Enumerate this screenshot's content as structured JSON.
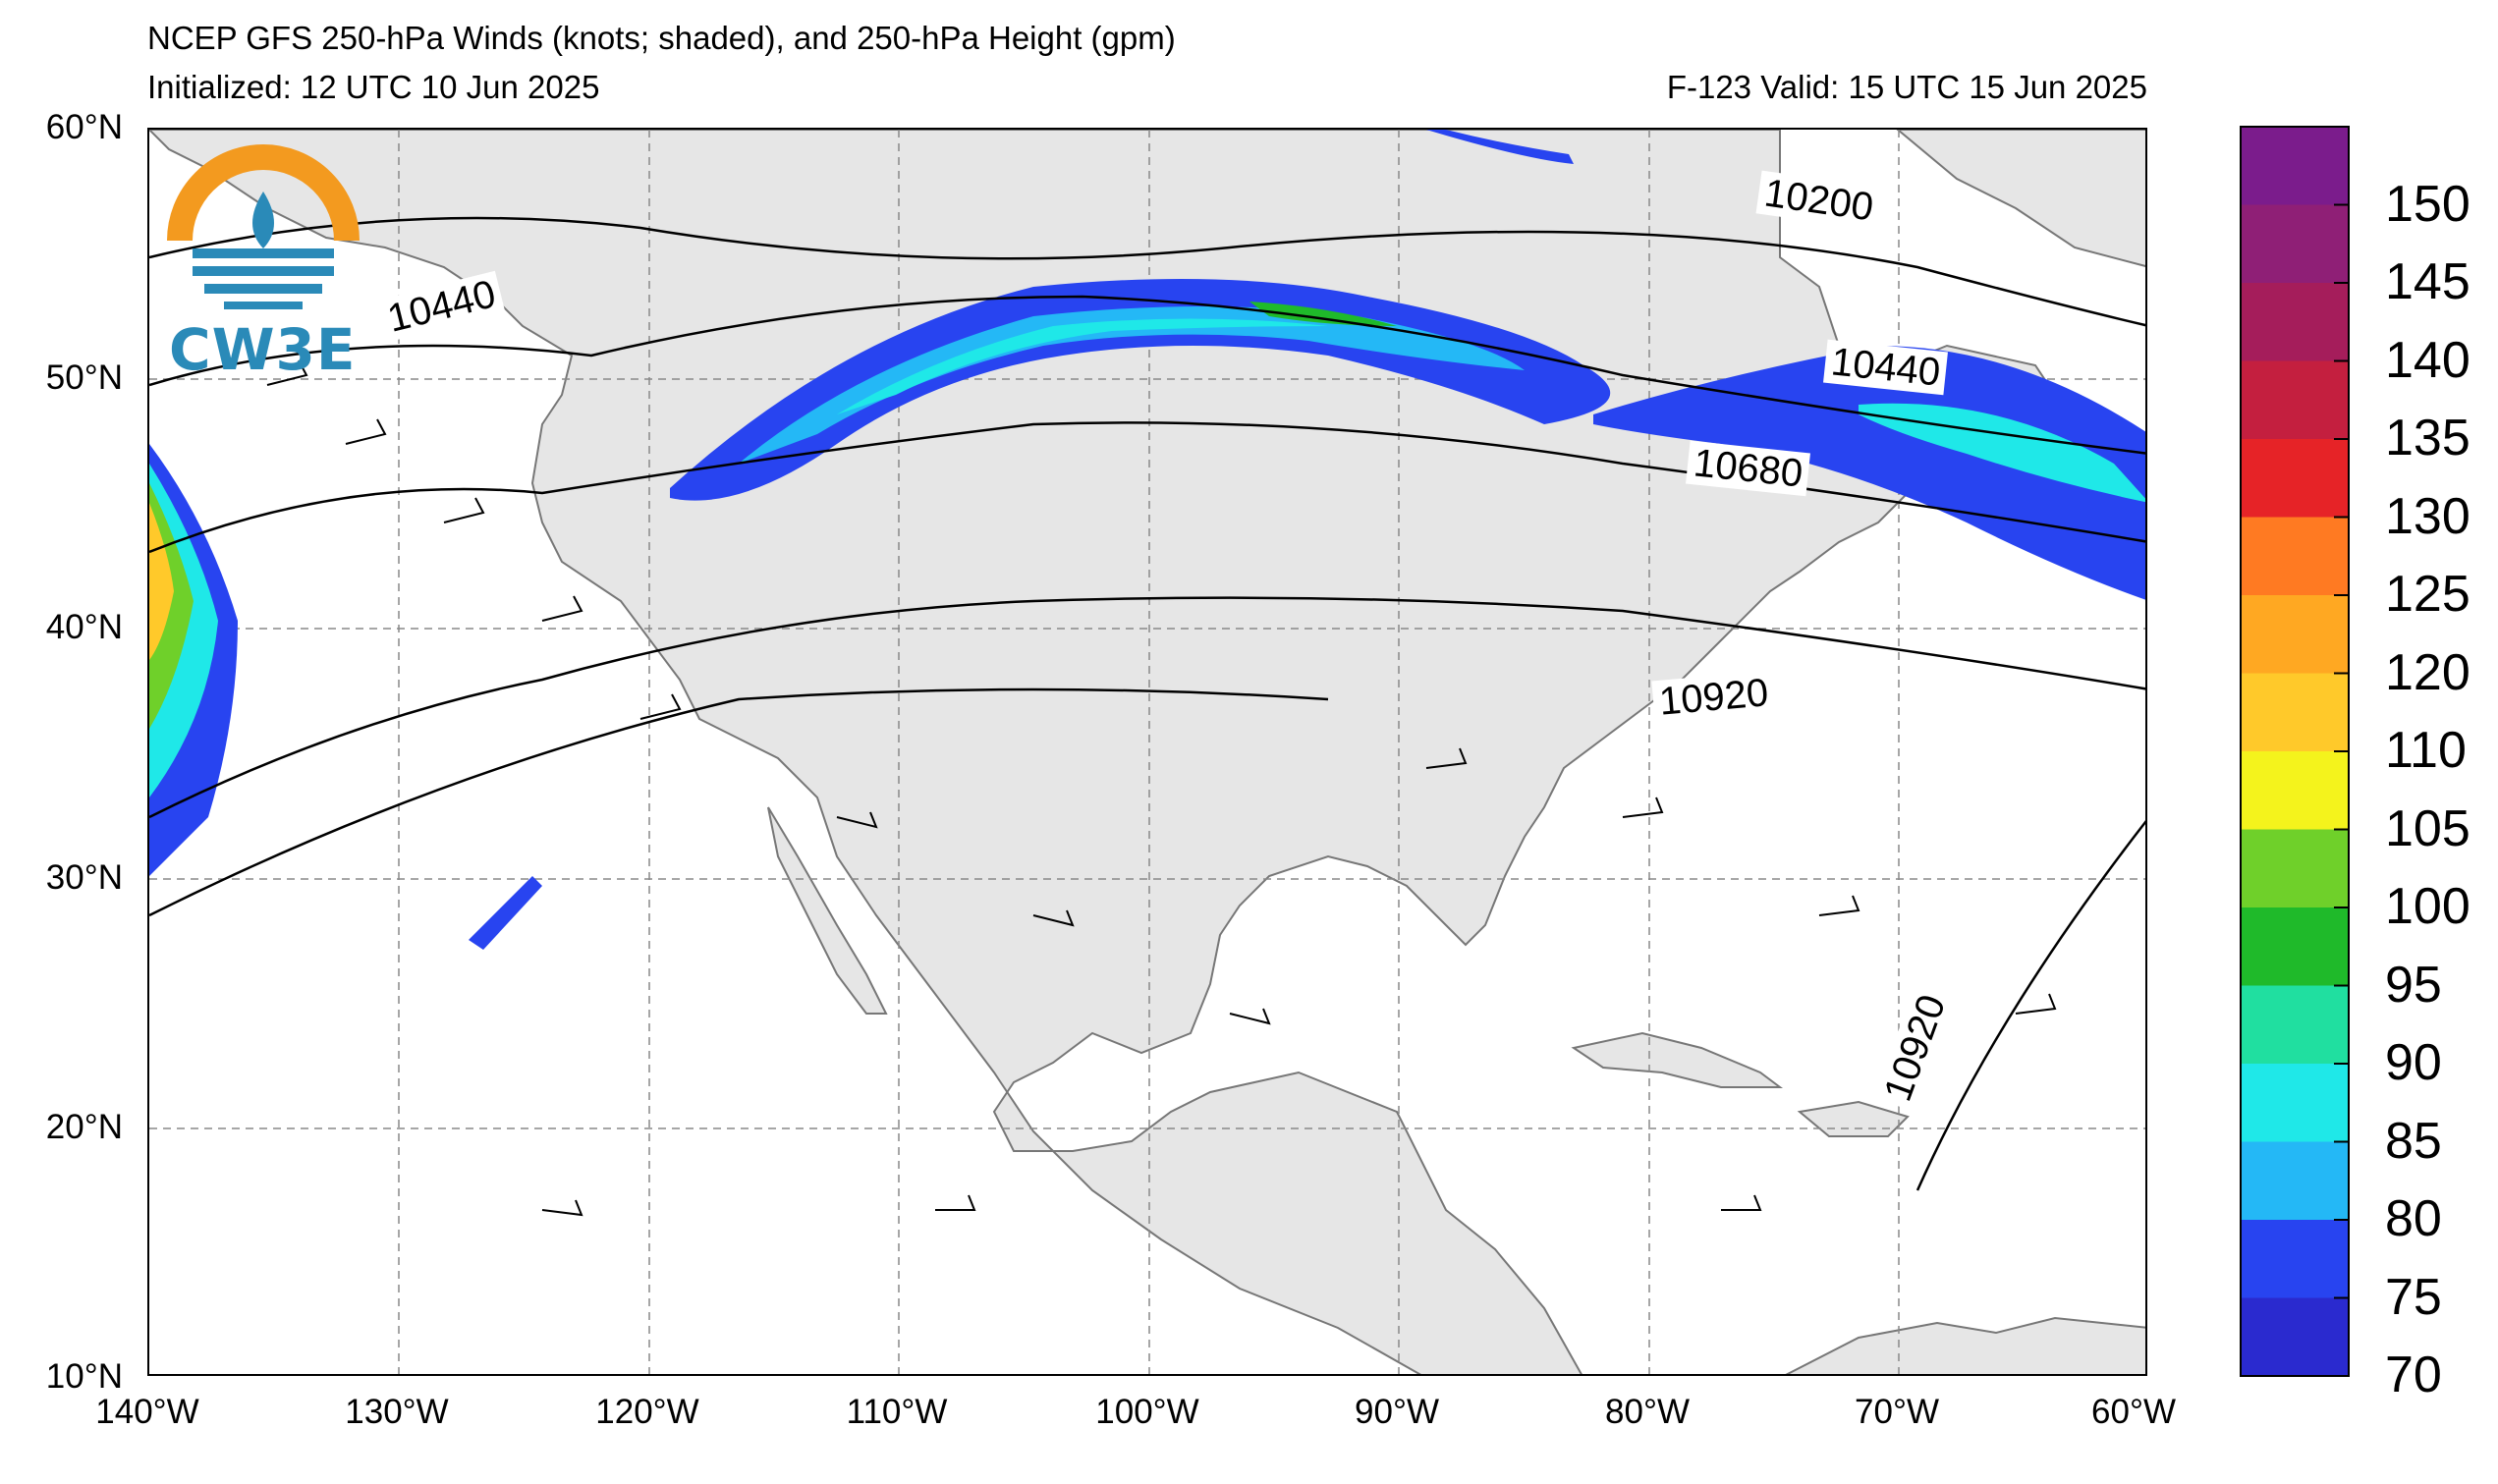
{
  "header": {
    "title_line1": "NCEP GFS 250-hPa Winds (knots; shaded), and 250-hPa Height (gpm)",
    "title_line2": "Initialized: 12 UTC 10 Jun 2025",
    "valid": "F-123  Valid: 15 UTC 15 Jun 2025"
  },
  "logo": {
    "text": "CW3E",
    "icon": "cw3e-logo-icon",
    "colors": {
      "orange": "#f39a1f",
      "blue": "#2a8ab8"
    }
  },
  "axes": {
    "lat_labels": [
      "60°N",
      "50°N",
      "40°N",
      "30°N",
      "20°N",
      "10°N"
    ],
    "lon_labels": [
      "140°W",
      "130°W",
      "120°W",
      "110°W",
      "100°W",
      "90°W",
      "80°W",
      "70°W",
      "60°W"
    ],
    "lat_range": [
      10,
      60
    ],
    "lon_range": [
      -140,
      -60
    ]
  },
  "height_labels": [
    "10200",
    "10440",
    "10440",
    "10680",
    "10920",
    "10920"
  ],
  "colorbar": {
    "labels": [
      "150",
      "145",
      "140",
      "135",
      "130",
      "125",
      "120",
      "110",
      "105",
      "100",
      "95",
      "90",
      "85",
      "80",
      "75",
      "70"
    ],
    "colors": [
      "#7b1c8c",
      "#8f1f76",
      "#a51d5b",
      "#c41f3f",
      "#e62327",
      "#ff7a22",
      "#ffa822",
      "#ffc92a",
      "#f4f31c",
      "#6fd02a",
      "#1fba2a",
      "#20dfa0",
      "#1fe8e8",
      "#24b8f6",
      "#2844f0",
      "#2a2acf"
    ]
  },
  "map": {
    "land_color": "#e6e6e6",
    "ocean_color": "#ffffff",
    "grid": true
  }
}
